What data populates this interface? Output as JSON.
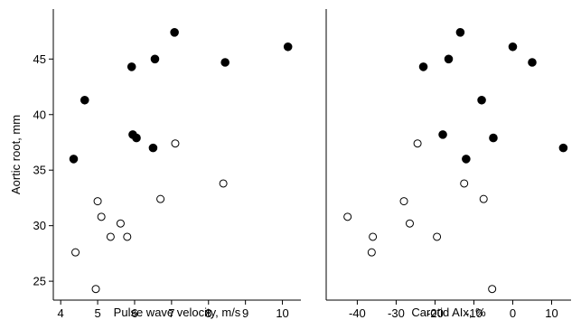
{
  "colors": {
    "filled": "#000000",
    "open_fill": "#ffffff",
    "stroke": "#000000"
  },
  "chart_data": [
    {
      "type": "scatter",
      "xlabel": "Pulse wave velocity, m/s",
      "ylabel": "Aortic root, mm",
      "xlim": [
        3.8,
        10.5
      ],
      "ylim": [
        23.3,
        49.5
      ],
      "xticks": [
        4,
        5,
        6,
        7,
        8,
        9,
        10
      ],
      "yticks": [
        25,
        30,
        35,
        40,
        45
      ],
      "series": [
        {
          "marker": "filled",
          "points": [
            {
              "x": 4.35,
              "y": 36.0
            },
            {
              "x": 4.65,
              "y": 41.3
            },
            {
              "x": 5.92,
              "y": 44.3
            },
            {
              "x": 5.95,
              "y": 38.2
            },
            {
              "x": 6.05,
              "y": 37.9
            },
            {
              "x": 6.5,
              "y": 37.0
            },
            {
              "x": 6.55,
              "y": 45.0
            },
            {
              "x": 7.08,
              "y": 47.4
            },
            {
              "x": 8.45,
              "y": 44.7
            },
            {
              "x": 10.15,
              "y": 46.1
            }
          ]
        },
        {
          "marker": "open",
          "points": [
            {
              "x": 4.4,
              "y": 27.6
            },
            {
              "x": 4.95,
              "y": 24.3
            },
            {
              "x": 5.0,
              "y": 32.2
            },
            {
              "x": 5.1,
              "y": 30.8
            },
            {
              "x": 5.35,
              "y": 29.0
            },
            {
              "x": 5.62,
              "y": 30.2
            },
            {
              "x": 5.8,
              "y": 29.0
            },
            {
              "x": 6.7,
              "y": 32.4
            },
            {
              "x": 7.1,
              "y": 37.4
            },
            {
              "x": 8.4,
              "y": 33.8
            }
          ]
        }
      ]
    },
    {
      "type": "scatter",
      "xlabel": "Carotid AIx, %",
      "ylabel": "",
      "xlim": [
        -48,
        15
      ],
      "ylim": [
        23.3,
        49.5
      ],
      "xticks": [
        -40,
        -30,
        -20,
        -10,
        0,
        10
      ],
      "yticks": [],
      "series": [
        {
          "marker": "filled",
          "points": [
            {
              "x": -23,
              "y": 44.3
            },
            {
              "x": -16.5,
              "y": 45.0
            },
            {
              "x": -13.5,
              "y": 47.4
            },
            {
              "x": -18,
              "y": 38.2
            },
            {
              "x": -12,
              "y": 36.0
            },
            {
              "x": -8,
              "y": 41.3
            },
            {
              "x": -5,
              "y": 37.9
            },
            {
              "x": 0,
              "y": 46.1
            },
            {
              "x": 5,
              "y": 44.7
            },
            {
              "x": 13,
              "y": 37.0
            }
          ]
        },
        {
          "marker": "open",
          "points": [
            {
              "x": -42.5,
              "y": 30.8
            },
            {
              "x": -36,
              "y": 29.0
            },
            {
              "x": -36.3,
              "y": 27.6
            },
            {
              "x": -28,
              "y": 32.2
            },
            {
              "x": -26.5,
              "y": 30.2
            },
            {
              "x": -24.5,
              "y": 37.4
            },
            {
              "x": -19.5,
              "y": 29.0
            },
            {
              "x": -12.5,
              "y": 33.8
            },
            {
              "x": -7.5,
              "y": 32.4
            },
            {
              "x": -5.3,
              "y": 24.3
            }
          ]
        }
      ]
    }
  ]
}
